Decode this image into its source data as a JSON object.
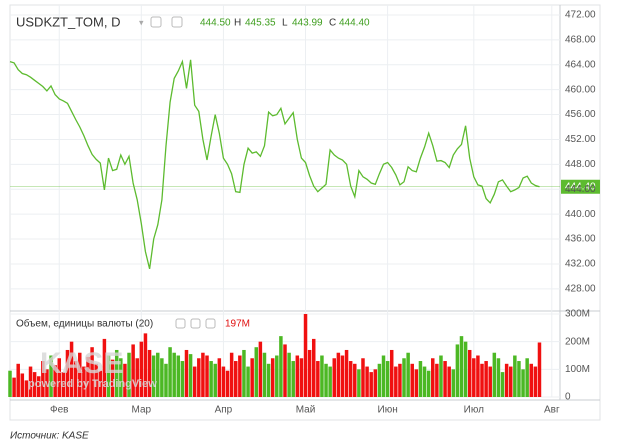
{
  "chart_data": {
    "type": "line",
    "title": "USDKZT_TOM, D",
    "legend": {
      "open": "444.50",
      "h_label": "H",
      "high": "445.35",
      "l_label": "L",
      "low": "443.99",
      "c_label": "C",
      "close": "444.40"
    },
    "color": "#5dbb2f",
    "values": [
      464.5,
      464.3,
      463.2,
      462.6,
      462.4,
      462.0,
      461.5,
      461.0,
      460.5,
      459.8,
      460.6,
      459.2,
      458.5,
      458.2,
      457.8,
      456.5,
      455.2,
      454.0,
      452.6,
      451.0,
      449.6,
      448.8,
      448.2,
      443.9,
      449.0,
      447.0,
      447.2,
      449.5,
      448.0,
      449.3,
      445.0,
      442.3,
      438.5,
      434.0,
      431.2,
      436.0,
      438.3,
      442.3,
      451.0,
      458.0,
      461.8,
      463.0,
      464.5,
      460.2,
      464.8,
      457.5,
      456.5,
      452.0,
      448.7,
      452.5,
      456.0,
      453.0,
      449.0,
      448.0,
      446.5,
      443.6,
      443.5,
      448.0,
      450.6,
      449.8,
      450.0,
      449.3,
      451.0,
      456.4,
      455.8,
      456.0,
      457.0,
      454.5,
      455.4,
      456.3,
      452.0,
      449.0,
      448.3,
      446.2,
      444.5,
      443.6,
      444.2,
      444.8,
      450.3,
      449.5,
      449.0,
      448.7,
      448.0,
      444.5,
      442.8,
      447.0,
      446.0,
      445.6,
      445.0,
      444.8,
      446.5,
      448.0,
      448.3,
      447.5,
      446.3,
      444.7,
      445.2,
      447.6,
      447.0,
      446.8,
      449.0,
      450.8,
      453.0,
      451.0,
      448.5,
      448.6,
      448.3,
      447.5,
      449.5,
      450.5,
      451.2,
      454.2,
      449.0,
      446.0,
      444.7,
      444.5,
      442.5,
      441.8,
      443.2,
      445.2,
      445.5,
      444.5,
      443.6,
      443.9,
      444.3,
      445.8,
      446.1,
      445.0,
      444.6,
      444.4
    ],
    "last_price": {
      "value": 444.4,
      "label": "444.40"
    },
    "ylim": [
      424.6,
      473.6
    ],
    "yticks": [
      {
        "value": 428,
        "label": "428.00"
      },
      {
        "value": 432,
        "label": "432.00"
      },
      {
        "value": 436,
        "label": "436.00"
      },
      {
        "value": 440,
        "label": "440.00"
      },
      {
        "value": 444,
        "label": "444.00"
      },
      {
        "value": 448,
        "label": "448.00"
      },
      {
        "value": 452,
        "label": "452.00"
      },
      {
        "value": 456,
        "label": "456.00"
      },
      {
        "value": 460,
        "label": "460.00"
      },
      {
        "value": 464,
        "label": "464.00"
      },
      {
        "value": 468,
        "label": "468.00"
      },
      {
        "value": 472,
        "label": "472.00"
      }
    ],
    "xlim": [
      0,
      134
    ],
    "xticks": [
      {
        "value": 12,
        "label": "Фев"
      },
      {
        "value": 32,
        "label": "Мар"
      },
      {
        "value": 52,
        "label": "Апр"
      },
      {
        "value": 72,
        "label": "Май"
      },
      {
        "value": 92,
        "label": "Июн"
      },
      {
        "value": 113,
        "label": "Июл"
      },
      {
        "value": 132,
        "label": "Авг"
      }
    ],
    "grid": true,
    "volume": {
      "label": "Объем, единицы валюты (20)",
      "last_label": "197M",
      "up_color": "#4cb824",
      "down_color": "#f01010",
      "values": [
        95,
        70,
        120,
        85,
        60,
        110,
        90,
        75,
        130,
        100,
        150,
        115,
        140,
        90,
        170,
        200,
        130,
        160,
        110,
        145,
        180,
        120,
        95,
        210,
        150,
        135,
        170,
        140,
        120,
        160,
        190,
        140,
        200,
        230,
        170,
        150,
        160,
        140,
        120,
        180,
        160,
        150,
        130,
        170,
        155,
        110,
        140,
        160,
        150,
        130,
        120,
        140,
        110,
        95,
        160,
        130,
        150,
        170,
        110,
        140,
        180,
        200,
        160,
        120,
        140,
        150,
        220,
        190,
        160,
        130,
        150,
        140,
        300,
        170,
        210,
        130,
        150,
        120,
        110,
        140,
        160,
        150,
        170,
        130,
        120,
        100,
        140,
        110,
        90,
        100,
        120,
        150,
        130,
        170,
        110,
        120,
        140,
        160,
        120,
        100,
        130,
        110,
        95,
        140,
        120,
        150,
        130,
        110,
        100,
        190,
        220,
        200,
        170,
        140,
        150,
        120,
        130,
        110,
        160,
        140,
        90,
        120,
        110,
        150,
        130,
        100,
        140,
        120,
        110,
        197
      ],
      "ylim": [
        0,
        300
      ],
      "yticks": [
        0,
        {
          "value": 100,
          "label": "100M"
        },
        {
          "value": 200,
          "label": "200M"
        },
        {
          "value": 300,
          "label": "300M"
        }
      ]
    },
    "watermark": "KASE",
    "watermark_sub": "powered by TradingView",
    "source": "Источник: KASE"
  }
}
